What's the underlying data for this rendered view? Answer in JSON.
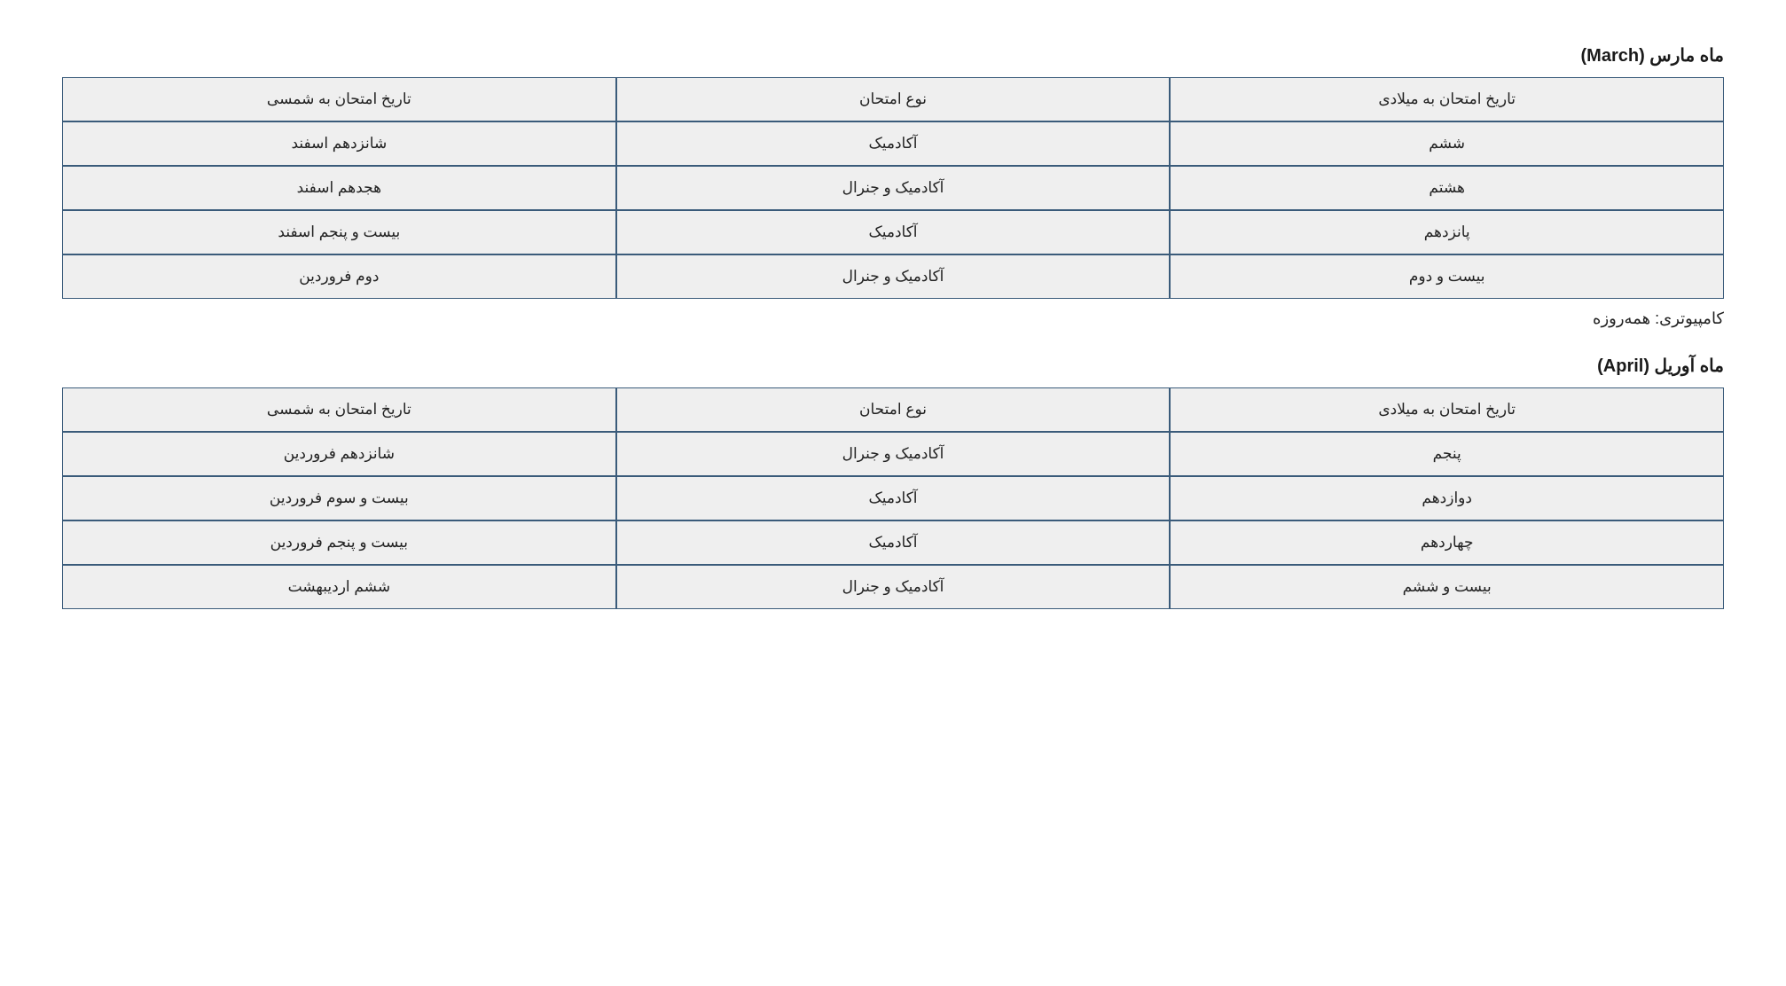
{
  "sections": [
    {
      "title": "ماه مارس (March)",
      "table": {
        "columns": [
          "تاریخ امتحان به میلادی",
          "نوع امتحان",
          "تاریخ امتحان به شمسی"
        ],
        "rows": [
          [
            "ششم",
            "آکادمیک",
            "شانزدهم اسفند"
          ],
          [
            "هشتم",
            "آکادمیک و جنرال",
            "هجدهم اسفند"
          ],
          [
            "پانزدهم",
            "آکادمیک",
            "بیست و پنجم اسفند"
          ],
          [
            "بیست و دوم",
            "آکادمیک و جنرال",
            "دوم فروردین"
          ]
        ]
      },
      "note": "کامپیوتری: همه‌روزه"
    },
    {
      "title": "ماه آوریل (April)",
      "table": {
        "columns": [
          "تاریخ امتحان به میلادی",
          "نوع امتحان",
          "تاریخ امتحان به شمسی"
        ],
        "rows": [
          [
            "پنجم",
            "آکادمیک و جنرال",
            "شانزدهم فروردین"
          ],
          [
            "دوازدهم",
            "آکادمیک",
            "بیست و سوم فروردین"
          ],
          [
            "چهاردهم",
            "آکادمیک",
            "بیست و پنجم فروردین"
          ],
          [
            "بیست و ششم",
            "آکادمیک و جنرال",
            "ششم اردیبهشت"
          ]
        ]
      },
      "note": null
    }
  ],
  "styling": {
    "cell_background": "#efefef",
    "cell_border": "#3a5b7a",
    "text_color": "#222222",
    "page_background": "#ffffff",
    "title_fontsize": 20,
    "cell_fontsize": 17,
    "note_fontsize": 18
  }
}
